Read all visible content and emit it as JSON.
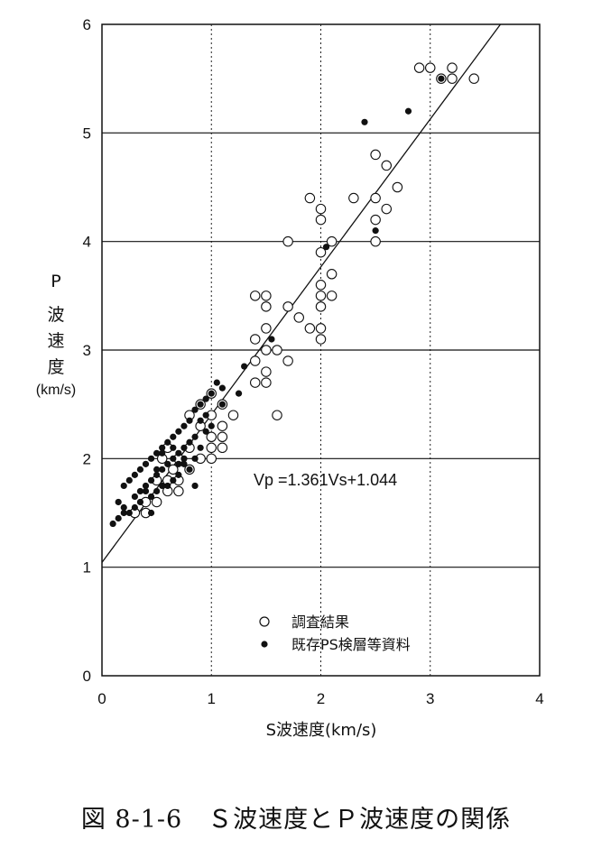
{
  "chart_data": {
    "type": "scatter",
    "xlabel": "S波速度(km/s)",
    "ylabel_chars": [
      "P",
      "波",
      "速",
      "度"
    ],
    "ylabel_unit": "(km/s)",
    "xlim": [
      0,
      4
    ],
    "ylim": [
      0,
      6
    ],
    "xticks": [
      0,
      1,
      2,
      3,
      4
    ],
    "yticks": [
      0,
      1,
      2,
      3,
      4,
      5,
      6
    ],
    "grid": true,
    "legend_position": "lower-center",
    "equation": "Vp =1.361Vs+1.044",
    "regression": {
      "slope": 1.361,
      "intercept": 1.044
    },
    "series": [
      {
        "name": "調査結果",
        "marker": "open-circle",
        "points": [
          [
            2.9,
            5.6
          ],
          [
            3.0,
            5.6
          ],
          [
            3.2,
            5.6
          ],
          [
            3.1,
            5.5
          ],
          [
            3.2,
            5.5
          ],
          [
            3.4,
            5.5
          ],
          [
            2.5,
            4.8
          ],
          [
            2.6,
            4.7
          ],
          [
            2.7,
            4.5
          ],
          [
            2.3,
            4.4
          ],
          [
            2.5,
            4.4
          ],
          [
            2.6,
            4.3
          ],
          [
            2.5,
            4.2
          ],
          [
            2.5,
            4.0
          ],
          [
            1.9,
            4.4
          ],
          [
            2.0,
            4.3
          ],
          [
            2.0,
            4.2
          ],
          [
            1.7,
            4.0
          ],
          [
            2.1,
            4.0
          ],
          [
            2.0,
            3.9
          ],
          [
            2.1,
            3.7
          ],
          [
            2.0,
            3.6
          ],
          [
            2.0,
            3.5
          ],
          [
            2.1,
            3.5
          ],
          [
            2.0,
            3.4
          ],
          [
            1.4,
            3.5
          ],
          [
            1.5,
            3.5
          ],
          [
            1.5,
            3.4
          ],
          [
            1.7,
            3.4
          ],
          [
            1.8,
            3.3
          ],
          [
            1.9,
            3.2
          ],
          [
            2.0,
            3.2
          ],
          [
            2.0,
            3.1
          ],
          [
            1.4,
            3.1
          ],
          [
            1.5,
            3.2
          ],
          [
            1.5,
            3.0
          ],
          [
            1.6,
            3.0
          ],
          [
            1.7,
            2.9
          ],
          [
            1.4,
            2.9
          ],
          [
            1.5,
            2.8
          ],
          [
            1.4,
            2.7
          ],
          [
            1.5,
            2.7
          ],
          [
            1.6,
            2.4
          ],
          [
            1.0,
            2.6
          ],
          [
            1.1,
            2.5
          ],
          [
            1.2,
            2.4
          ],
          [
            0.9,
            2.5
          ],
          [
            1.0,
            2.4
          ],
          [
            1.1,
            2.3
          ],
          [
            1.0,
            2.2
          ],
          [
            1.1,
            2.2
          ],
          [
            0.8,
            2.4
          ],
          [
            0.9,
            2.3
          ],
          [
            1.0,
            2.1
          ],
          [
            1.1,
            2.1
          ],
          [
            0.8,
            2.1
          ],
          [
            0.9,
            2.0
          ],
          [
            1.0,
            2.0
          ],
          [
            0.6,
            2.1
          ],
          [
            0.7,
            2.0
          ],
          [
            0.8,
            1.9
          ],
          [
            0.7,
            1.8
          ],
          [
            0.6,
            1.8
          ],
          [
            0.5,
            1.8
          ],
          [
            0.6,
            1.7
          ],
          [
            0.5,
            1.6
          ],
          [
            0.4,
            1.6
          ],
          [
            0.4,
            1.5
          ],
          [
            0.3,
            1.5
          ],
          [
            0.7,
            1.7
          ],
          [
            0.55,
            2.0
          ],
          [
            0.65,
            1.9
          ]
        ]
      },
      {
        "name": "既存PS検層等資料",
        "marker": "filled-circle",
        "points": [
          [
            3.1,
            5.5
          ],
          [
            2.8,
            5.2
          ],
          [
            2.4,
            5.1
          ],
          [
            2.5,
            4.1
          ],
          [
            2.05,
            3.95
          ],
          [
            1.55,
            3.1
          ],
          [
            1.3,
            2.85
          ],
          [
            1.25,
            2.6
          ],
          [
            1.1,
            2.65
          ],
          [
            1.05,
            2.7
          ],
          [
            1.0,
            2.6
          ],
          [
            0.95,
            2.55
          ],
          [
            0.9,
            2.5
          ],
          [
            0.85,
            2.45
          ],
          [
            0.9,
            2.35
          ],
          [
            0.8,
            2.35
          ],
          [
            0.75,
            2.3
          ],
          [
            0.7,
            2.25
          ],
          [
            0.65,
            2.2
          ],
          [
            0.6,
            2.15
          ],
          [
            0.55,
            2.1
          ],
          [
            0.5,
            2.05
          ],
          [
            0.45,
            2.0
          ],
          [
            0.4,
            1.95
          ],
          [
            0.35,
            1.9
          ],
          [
            0.3,
            1.85
          ],
          [
            0.25,
            1.8
          ],
          [
            0.2,
            1.75
          ],
          [
            0.15,
            1.6
          ],
          [
            0.1,
            1.4
          ],
          [
            0.2,
            1.5
          ],
          [
            0.3,
            1.55
          ],
          [
            0.35,
            1.7
          ],
          [
            0.4,
            1.75
          ],
          [
            0.45,
            1.8
          ],
          [
            0.5,
            1.85
          ],
          [
            0.55,
            1.9
          ],
          [
            0.6,
            1.95
          ],
          [
            0.65,
            2.0
          ],
          [
            0.7,
            2.05
          ],
          [
            0.75,
            2.1
          ],
          [
            0.8,
            2.15
          ],
          [
            0.85,
            2.2
          ],
          [
            0.95,
            2.25
          ],
          [
            0.6,
            1.75
          ],
          [
            0.5,
            1.7
          ],
          [
            0.45,
            1.65
          ],
          [
            0.35,
            1.6
          ],
          [
            0.25,
            1.5
          ],
          [
            0.15,
            1.45
          ],
          [
            0.8,
            1.9
          ],
          [
            0.9,
            2.1
          ],
          [
            0.7,
            1.85
          ],
          [
            0.75,
            1.95
          ],
          [
            0.85,
            2.0
          ],
          [
            1.0,
            2.3
          ],
          [
            0.65,
            1.8
          ],
          [
            0.55,
            1.75
          ],
          [
            0.4,
            1.7
          ],
          [
            0.3,
            1.65
          ],
          [
            0.2,
            1.55
          ],
          [
            0.45,
            1.5
          ],
          [
            0.75,
            2.0
          ],
          [
            0.65,
            2.1
          ],
          [
            0.95,
            2.4
          ],
          [
            0.85,
            1.75
          ],
          [
            0.55,
            2.05
          ],
          [
            1.1,
            2.5
          ],
          [
            0.7,
            1.95
          ],
          [
            0.5,
            1.9
          ]
        ]
      }
    ]
  },
  "caption": "図 8-1-6　Ｓ波速度とＰ波速度の関係"
}
